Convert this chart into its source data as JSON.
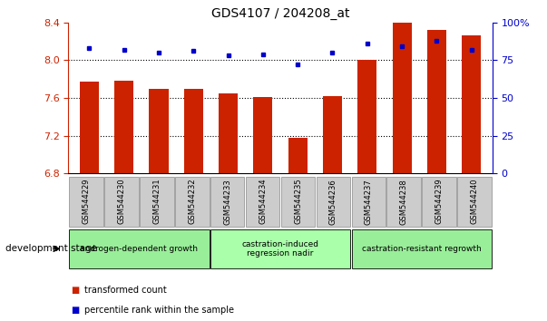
{
  "title": "GDS4107 / 204208_at",
  "categories": [
    "GSM544229",
    "GSM544230",
    "GSM544231",
    "GSM544232",
    "GSM544233",
    "GSM544234",
    "GSM544235",
    "GSM544236",
    "GSM544237",
    "GSM544238",
    "GSM544239",
    "GSM544240"
  ],
  "red_bars": [
    7.77,
    7.78,
    7.7,
    7.7,
    7.65,
    7.61,
    7.18,
    7.62,
    8.0,
    8.56,
    8.32,
    8.26
  ],
  "blue_dots": [
    83,
    82,
    80,
    81,
    78,
    79,
    72,
    80,
    86,
    84,
    88,
    82
  ],
  "ylim_left": [
    6.8,
    8.4
  ],
  "ylim_right": [
    0,
    100
  ],
  "yticks_left": [
    6.8,
    7.2,
    7.6,
    8.0,
    8.4
  ],
  "yticks_right": [
    0,
    25,
    50,
    75,
    100
  ],
  "ytick_labels_right": [
    "0",
    "25",
    "50",
    "75",
    "100%"
  ],
  "bar_color": "#CC2200",
  "dot_color": "#0000CC",
  "bar_bottom": 6.8,
  "groups": [
    {
      "label": "androgen-dependent growth",
      "span": [
        0,
        3
      ],
      "color": "#99EE99"
    },
    {
      "label": "castration-induced\nregression nadir",
      "span": [
        4,
        7
      ],
      "color": "#AAFFAA"
    },
    {
      "label": "castration-resistant regrowth",
      "span": [
        8,
        11
      ],
      "color": "#99EE99"
    }
  ],
  "development_stage_label": "development stage",
  "legend_items": [
    {
      "label": "transformed count",
      "color": "#CC2200"
    },
    {
      "label": "percentile rank within the sample",
      "color": "#0000CC"
    }
  ],
  "bg_color": "#FFFFFF",
  "gridline_yticks": [
    8.0,
    7.6,
    7.2
  ],
  "bar_width": 0.55,
  "tick_bg_color": "#CCCCCC",
  "tick_border_color": "#888888"
}
